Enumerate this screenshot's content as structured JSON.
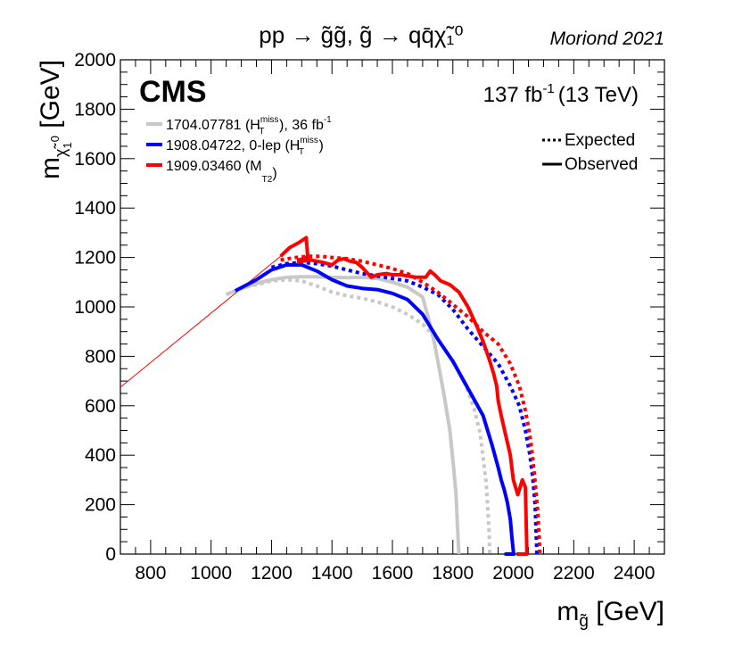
{
  "header": {
    "process_title": "pp → g̃g̃,  g̃ → qq̄χ̃₁⁰",
    "conference": "Moriond 2021"
  },
  "panel": {
    "experiment": "CMS",
    "luminosity": "137 fb",
    "luminosity_sup": "-1",
    "energy": "(13 TeV)"
  },
  "chart_data": {
    "type": "line",
    "title": "pp → g̃g̃,  g̃ → qq̄χ̃₁⁰",
    "xlabel": "m_g̃ [GeV]",
    "ylabel": "m_χ̃₁⁰ [GeV]",
    "xlim": [
      700,
      2500
    ],
    "ylim": [
      0,
      2000
    ],
    "x_ticks": [
      800,
      1000,
      1200,
      1400,
      1600,
      1800,
      2000,
      2200,
      2400
    ],
    "y_ticks": [
      0,
      200,
      400,
      600,
      800,
      1000,
      1200,
      1400,
      1600,
      1800,
      2000
    ],
    "grid": false,
    "legend_placement": "top-left",
    "legend": [
      {
        "text": "1704.07781 (H",
        "sub": "T",
        "sup": "miss",
        "suffix": "), 36 fb",
        "suffix_sup": "-1",
        "color": "#c8c8c8"
      },
      {
        "text": "1908.04722, 0-lep (H",
        "sub": "T",
        "sup": "miss",
        "suffix": ")",
        "suffix_sup": "",
        "color": "#0000ff"
      },
      {
        "text": "1909.03460 (M",
        "sub": "T2",
        "sup": "",
        "suffix": ")",
        "suffix_sup": "",
        "color": "#ff0000"
      }
    ],
    "style_legend": [
      {
        "label": "Expected",
        "style": "dotted"
      },
      {
        "label": "Observed",
        "style": "solid"
      }
    ],
    "diagonal": {
      "color": "#ff0000",
      "x": [
        700,
        1230
      ],
      "y": [
        675,
        1205
      ]
    },
    "series": [
      {
        "color": "#c8c8c8",
        "style": "solid",
        "x": [
          1050,
          1100,
          1150,
          1200,
          1250,
          1300,
          1350,
          1400,
          1450,
          1500,
          1550,
          1600,
          1650,
          1700,
          1720,
          1740,
          1755,
          1770,
          1790,
          1800,
          1810,
          1815,
          1818,
          1820
        ],
        "y": [
          1050,
          1075,
          1095,
          1110,
          1120,
          1122,
          1122,
          1120,
          1118,
          1120,
          1115,
          1100,
          1080,
          1040,
          950,
          850,
          750,
          650,
          500,
          380,
          250,
          120,
          40,
          0
        ]
      },
      {
        "color": "#c8c8c8",
        "style": "dotted",
        "x": [
          1050,
          1100,
          1150,
          1200,
          1250,
          1300,
          1350,
          1400,
          1450,
          1500,
          1550,
          1600,
          1650,
          1700,
          1750,
          1800,
          1840,
          1870,
          1890,
          1900,
          1910,
          1915,
          1920,
          1922
        ],
        "y": [
          1050,
          1075,
          1090,
          1105,
          1110,
          1105,
          1085,
          1060,
          1045,
          1035,
          1020,
          1000,
          970,
          930,
          870,
          780,
          690,
          590,
          490,
          390,
          290,
          190,
          90,
          0
        ]
      },
      {
        "color": "#0000ff",
        "style": "solid",
        "x": [
          1080,
          1150,
          1200,
          1250,
          1300,
          1350,
          1400,
          1450,
          1500,
          1550,
          1600,
          1650,
          1700,
          1750,
          1800,
          1850,
          1900,
          1930,
          1950,
          1960,
          1970,
          1980,
          1990,
          1995,
          2000,
          2002,
          1990,
          1975,
          1980,
          2000
        ],
        "y": [
          1065,
          1110,
          1150,
          1170,
          1170,
          1145,
          1110,
          1085,
          1075,
          1070,
          1055,
          1030,
          970,
          870,
          780,
          670,
          560,
          440,
          350,
          300,
          260,
          210,
          140,
          70,
          10,
          0,
          0,
          0,
          0,
          0
        ]
      },
      {
        "color": "#0000ff",
        "style": "dotted",
        "x": [
          1200,
          1250,
          1300,
          1350,
          1400,
          1450,
          1500,
          1550,
          1600,
          1650,
          1700,
          1750,
          1800,
          1850,
          1900,
          1950,
          1990,
          2020,
          2040,
          2055,
          2065,
          2072,
          2075,
          2078
        ],
        "y": [
          1160,
          1175,
          1180,
          1175,
          1165,
          1150,
          1135,
          1125,
          1115,
          1105,
          1080,
          1050,
          990,
          910,
          840,
          770,
          680,
          600,
          500,
          400,
          300,
          200,
          100,
          0
        ]
      },
      {
        "color": "#ff0000",
        "style": "solid",
        "x": [
          1230,
          1260,
          1290,
          1315,
          1320,
          1290,
          1290,
          1300,
          1330,
          1370,
          1400,
          1420,
          1440,
          1460,
          1480,
          1500,
          1530,
          1550,
          1580,
          1600,
          1630,
          1650,
          1680,
          1710,
          1725,
          1740,
          1760,
          1790,
          1820,
          1850,
          1880,
          1900,
          1920,
          1935,
          1945,
          1950,
          1960,
          1975,
          1990,
          2000,
          2015,
          2030,
          2040,
          2045,
          2025,
          2015,
          2010
        ],
        "y": [
          1205,
          1240,
          1260,
          1280,
          1200,
          1190,
          1180,
          1185,
          1190,
          1180,
          1170,
          1190,
          1195,
          1185,
          1180,
          1160,
          1120,
          1130,
          1135,
          1130,
          1130,
          1125,
          1120,
          1120,
          1145,
          1130,
          1105,
          1090,
          1060,
          1000,
          920,
          860,
          790,
          730,
          680,
          620,
          560,
          480,
          400,
          300,
          240,
          300,
          270,
          0,
          0,
          0,
          0
        ]
      },
      {
        "color": "#ff0000",
        "style": "dotted",
        "x": [
          1230,
          1280,
          1320,
          1360,
          1400,
          1450,
          1500,
          1550,
          1600,
          1650,
          1700,
          1750,
          1800,
          1850,
          1900,
          1950,
          1990,
          2020,
          2040,
          2055,
          2065,
          2073,
          2080,
          2085,
          2088
        ],
        "y": [
          1190,
          1200,
          1205,
          1205,
          1200,
          1195,
          1185,
          1170,
          1155,
          1135,
          1100,
          1060,
          1010,
          960,
          900,
          850,
          770,
          680,
          580,
          480,
          380,
          280,
          180,
          80,
          0
        ]
      }
    ]
  }
}
